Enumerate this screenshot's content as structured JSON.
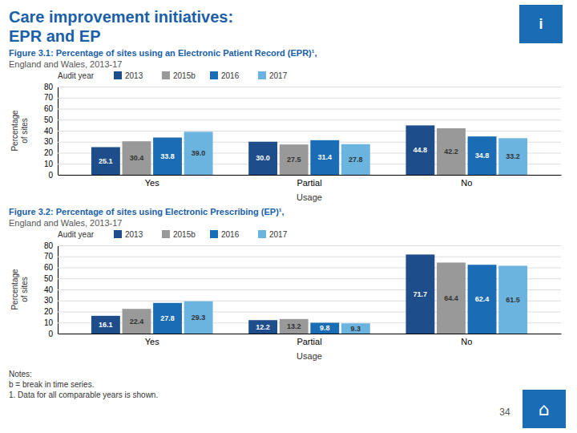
{
  "title": "Care improvement initiatives:",
  "subtitle": "EPR and EP",
  "annotations": [
    "Notes:\nb = break in time series.\n1. Data for all comparable years is shown.",
    "34",
    "i",
    "⌂"
  ],
  "chart_data": [
    {
      "type": "bar",
      "title": "Figure 3.1: Percentage of sites using an Electronic Patient Record (EPR)¹,",
      "subtitle": "England and Wales, 2013-17",
      "xlabel": "Usage",
      "ylabel": "Percentage\nof sites",
      "legend_title": "Audit year",
      "legend": "upper left",
      "categories": [
        "Yes",
        "Partial",
        "No"
      ],
      "series": [
        {
          "name": "2013",
          "color": "#1e4d8c",
          "values": [
            25.1,
            30.0,
            44.8
          ],
          "value_labels": [
            "25.1",
            "30.0",
            "44.8"
          ]
        },
        {
          "name": "2015b",
          "color": "#999999",
          "values": [
            30.4,
            27.5,
            42.2
          ],
          "value_labels": [
            "30.4",
            "27.5",
            "42.2"
          ]
        },
        {
          "name": "2016",
          "color": "#1a6db5",
          "values": [
            33.8,
            31.4,
            34.8
          ],
          "value_labels": [
            "33.8",
            "31.4",
            "34.8"
          ]
        },
        {
          "name": "2017",
          "color": "#6cb4e0",
          "values": [
            39.0,
            27.8,
            33.2
          ],
          "value_labels": [
            "39.0",
            "27.8",
            "33.2"
          ]
        }
      ],
      "ylim": [
        0,
        80
      ],
      "yticks": [
        0,
        10,
        20,
        30,
        40,
        50,
        60,
        70,
        80
      ],
      "grid": true,
      "data_labels": true
    },
    {
      "type": "bar",
      "title": "Figure 3.2: Percentage of sites using Electronic Prescribing (EP)¹,",
      "subtitle": "England and Wales, 2013-17",
      "xlabel": "Usage",
      "ylabel": "Percentage\nof sites",
      "legend_title": "Audit year",
      "legend": "upper left",
      "categories": [
        "Yes",
        "Partial",
        "No"
      ],
      "series": [
        {
          "name": "2013",
          "color": "#1e4d8c",
          "values": [
            16.1,
            12.2,
            71.7
          ],
          "value_labels": [
            "16.1",
            "12.2",
            "71.7"
          ]
        },
        {
          "name": "2015b",
          "color": "#999999",
          "values": [
            22.4,
            13.2,
            64.4
          ],
          "value_labels": [
            "22.4",
            "13.2",
            "64.4"
          ]
        },
        {
          "name": "2016",
          "color": "#1a6db5",
          "values": [
            27.8,
            9.8,
            62.4
          ],
          "value_labels": [
            "27.8",
            "9.8",
            "62.4"
          ]
        },
        {
          "name": "2017",
          "color": "#6cb4e0",
          "values": [
            29.3,
            9.3,
            61.5
          ],
          "value_labels": [
            "29.3",
            "9.3",
            "61.5"
          ]
        }
      ],
      "ylim": [
        0,
        80
      ],
      "yticks": [
        0,
        10,
        20,
        30,
        40,
        50,
        60,
        70,
        80
      ],
      "grid": true,
      "data_labels": true
    }
  ]
}
